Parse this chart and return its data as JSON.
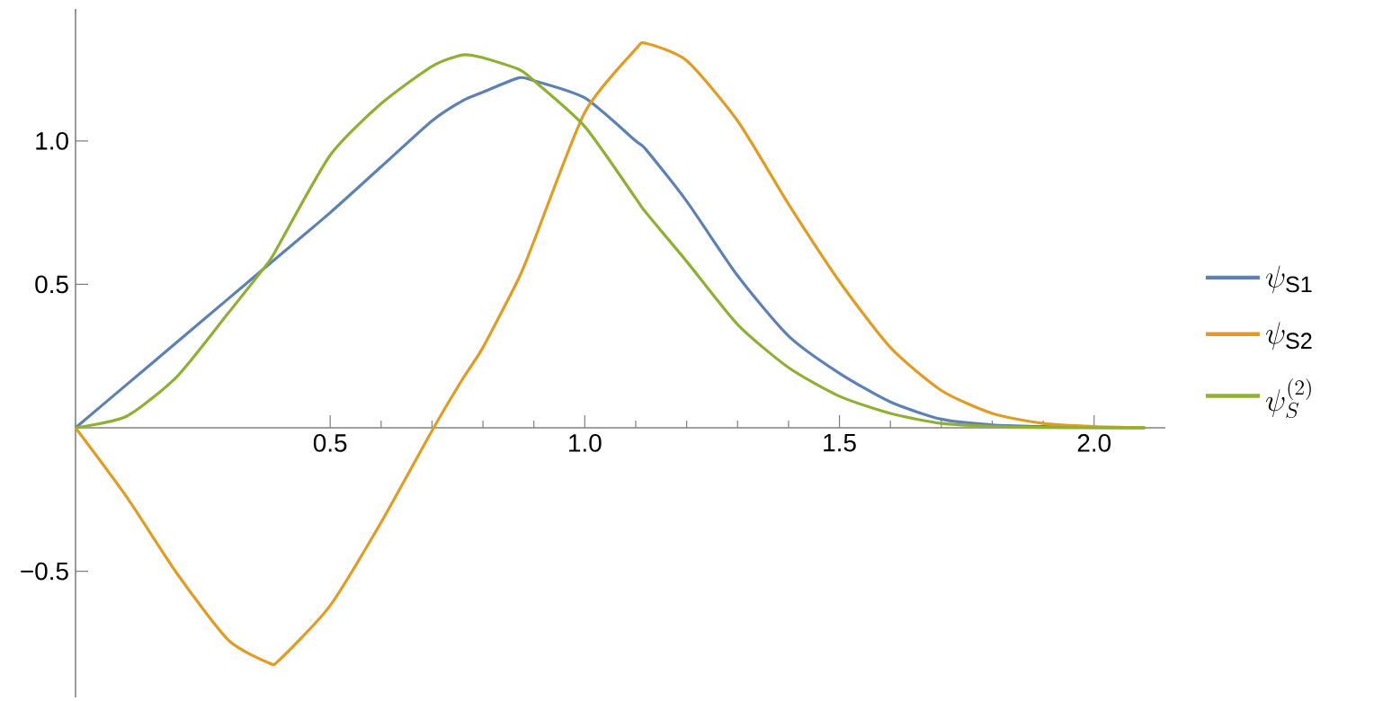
{
  "chart_data": {
    "type": "line",
    "x": [
      0,
      0.1,
      0.2,
      0.3,
      0.38,
      0.4,
      0.5,
      0.6,
      0.7,
      0.76,
      0.8,
      0.87,
      0.9,
      1.0,
      1.1,
      1.12,
      1.2,
      1.3,
      1.4,
      1.5,
      1.6,
      1.7,
      1.8,
      1.9,
      2.0,
      2.1
    ],
    "series": [
      {
        "name": "\\psi_{\\mathrm{S1}}",
        "color": "#5e81b5",
        "values": [
          0,
          0.15,
          0.3,
          0.45,
          0.57,
          0.6,
          0.75,
          0.91,
          1.07,
          1.14,
          1.17,
          1.22,
          1.21,
          1.15,
          1.0,
          0.97,
          0.79,
          0.53,
          0.32,
          0.19,
          0.09,
          0.03,
          0.01,
          0.004,
          0.001,
          0
        ]
      },
      {
        "name": "\\psi_{\\mathrm{S2}}",
        "color": "#e19c24",
        "values": [
          0,
          -0.24,
          -0.51,
          -0.74,
          -0.82,
          -0.81,
          -0.62,
          -0.33,
          -0.01,
          0.17,
          0.28,
          0.52,
          0.65,
          1.1,
          1.32,
          1.34,
          1.28,
          1.07,
          0.78,
          0.51,
          0.28,
          0.13,
          0.05,
          0.015,
          0.004,
          0
        ]
      },
      {
        "name": "\\psi_{S}^{(2)}",
        "color": "#8fb032",
        "values": [
          0,
          0.04,
          0.18,
          0.4,
          0.58,
          0.64,
          0.95,
          1.13,
          1.26,
          1.3,
          1.29,
          1.25,
          1.21,
          1.05,
          0.8,
          0.75,
          0.58,
          0.36,
          0.21,
          0.11,
          0.05,
          0.015,
          0.005,
          0.001,
          0,
          0
        ]
      }
    ],
    "xlim": [
      0,
      2.14
    ],
    "ylim": [
      -0.94,
      1.46
    ],
    "xticks": [
      {
        "value": 0.5,
        "label": "0.5"
      },
      {
        "value": 1,
        "label": "1.0"
      },
      {
        "value": 1.5,
        "label": "1.5"
      },
      {
        "value": 2,
        "label": "2.0"
      }
    ],
    "yticks": [
      {
        "value": -0.5,
        "label": "−0.5"
      },
      {
        "value": 0.5,
        "label": "0.5"
      },
      {
        "value": 1,
        "label": "1.0"
      }
    ],
    "legend": "right",
    "marker": "none",
    "line_style": "solid",
    "grid": false
  }
}
